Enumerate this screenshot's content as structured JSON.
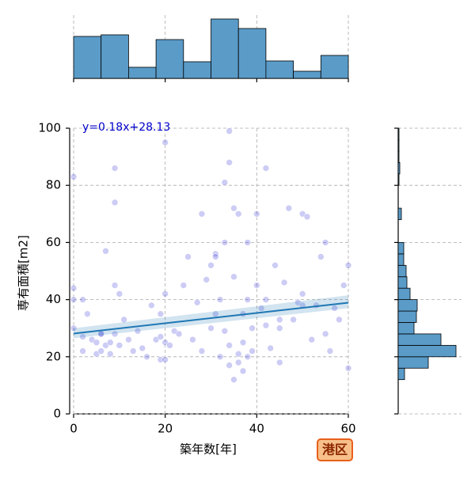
{
  "chart_data": [
    {
      "type": "scatter",
      "xlabel": "築年数[年]",
      "ylabel": "専有面積[m2]",
      "annotation": "y=0.18x+28.13",
      "color": "#0000cd",
      "line_color": "#1f77b4",
      "grid": true,
      "xlim": [
        0,
        60
      ],
      "ylim": [
        0,
        100
      ],
      "xticks": [
        0,
        20,
        40,
        60
      ],
      "yticks": [
        0,
        20,
        40,
        60,
        80,
        100
      ],
      "x": [
        0,
        0,
        0,
        0,
        2,
        2,
        2,
        4,
        5,
        5,
        6,
        6,
        7,
        7,
        8,
        8,
        9,
        9,
        10,
        10,
        11,
        12,
        13,
        14,
        15,
        16,
        17,
        18,
        19,
        19,
        19,
        20,
        20,
        20,
        21,
        22,
        23,
        24,
        25,
        26,
        27,
        28,
        29,
        30,
        30,
        31,
        31,
        32,
        32,
        33,
        33,
        34,
        34,
        34,
        35,
        35,
        35,
        36,
        36,
        36,
        37,
        37,
        37,
        38,
        38,
        38,
        39,
        39,
        40,
        40,
        41,
        42,
        42,
        43,
        44,
        45,
        45,
        46,
        47,
        48,
        49,
        50,
        50,
        51,
        52,
        53,
        54,
        55,
        56,
        57,
        58,
        59,
        60,
        60,
        9,
        20,
        42,
        34,
        33,
        28,
        31,
        6,
        9,
        3,
        50,
        55,
        45
      ],
      "y": [
        83,
        44,
        40,
        30,
        40,
        22,
        27,
        26,
        25,
        21,
        28,
        22,
        57,
        24,
        25,
        21,
        45,
        28,
        42,
        24,
        33,
        26,
        22,
        29,
        23,
        20,
        38,
        26,
        27,
        19,
        35,
        95,
        25,
        42,
        24,
        29,
        28,
        45,
        55,
        26,
        39,
        22,
        47,
        30,
        52,
        56,
        35,
        20,
        40,
        29,
        60,
        24,
        88,
        17,
        48,
        12,
        72,
        21,
        18,
        70,
        35,
        25,
        15,
        60,
        20,
        40,
        30,
        22,
        45,
        70,
        37,
        86,
        40,
        23,
        52,
        30,
        18,
        46,
        72,
        33,
        39,
        70,
        42,
        69,
        26,
        38,
        55,
        28,
        22,
        37,
        33,
        45,
        52,
        16,
        86,
        19,
        31,
        99,
        81,
        70,
        55,
        28,
        74,
        35,
        38,
        60,
        33
      ],
      "regression": {
        "x": [
          0,
          60
        ],
        "y": [
          28.13,
          38.93
        ],
        "lower": [
          26.5,
          37
        ],
        "upper": [
          30,
          41.5
        ]
      }
    },
    {
      "type": "histogram",
      "orientation": "vertical",
      "color": "#5a9bc8",
      "bins": [
        0,
        6,
        12,
        18,
        24,
        30,
        36,
        42,
        48,
        54,
        60
      ],
      "counts": [
        53,
        55,
        14,
        49,
        21,
        75,
        63,
        22,
        9,
        29
      ],
      "xlim": [
        0,
        60
      ],
      "xticks": [
        0,
        20,
        40,
        60
      ],
      "ylim": [
        0,
        80
      ],
      "grid": true
    },
    {
      "type": "histogram",
      "orientation": "horizontal",
      "color": "#5a9bc8",
      "bins": [
        12,
        16,
        20,
        24,
        28,
        32,
        36,
        40,
        44,
        48,
        52,
        56,
        60,
        64,
        68,
        72,
        76,
        80,
        84,
        88,
        92,
        96,
        100
      ],
      "counts": [
        8,
        38,
        73,
        54,
        20,
        23,
        24,
        15,
        11,
        10,
        7,
        7,
        0,
        0,
        4,
        0,
        0,
        1,
        2,
        1,
        1,
        1
      ],
      "ylim": [
        0,
        100
      ],
      "yticks": [
        0,
        20,
        40,
        60,
        80,
        100
      ],
      "xlim": [
        0,
        80
      ],
      "grid": true
    }
  ],
  "badge": "港区"
}
